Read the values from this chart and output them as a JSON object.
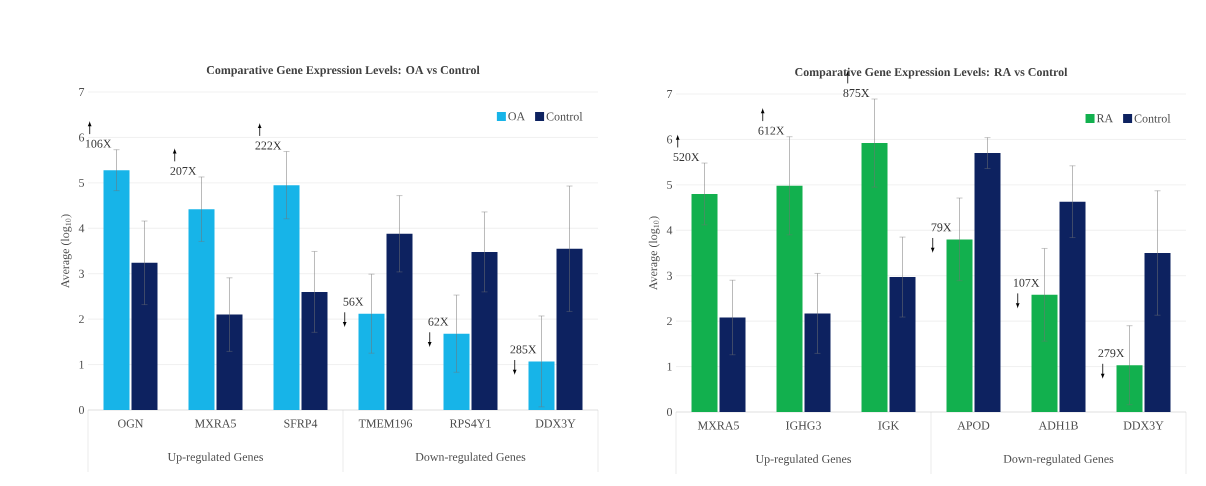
{
  "chart_data": [
    {
      "type": "bar",
      "title": "Comparative Gene Expression Levels: OA vs Control",
      "ylabel": "Average (log$_{10}$)",
      "categories": [
        "OGN",
        "MXRA5",
        "SFRP4",
        "TMEM196",
        "RPS4Y1",
        "DDX3Y"
      ],
      "series": [
        {
          "name": "OA",
          "color": "#17b4e8",
          "values": [
            5.28,
            4.42,
            4.95,
            2.12,
            1.68,
            1.07
          ],
          "errors": [
            0.45,
            0.71,
            0.74,
            0.87,
            0.85,
            1.0
          ]
        },
        {
          "name": "Control",
          "color": "#0d2260",
          "values": [
            3.24,
            2.1,
            2.6,
            3.88,
            3.48,
            3.55
          ],
          "errors": [
            0.92,
            0.81,
            0.89,
            0.84,
            0.88,
            1.38
          ]
        }
      ],
      "ylim": [
        0,
        7
      ],
      "yticks": [
        0,
        1,
        2,
        3,
        4,
        5,
        6,
        7
      ],
      "grid": "y",
      "legend": "top right",
      "annotations": [
        "Up-regulated Genes",
        "Down-regulated Genes",
        "106X",
        "207X",
        "222X",
        "56X",
        "62X",
        "285X"
      ]
    },
    {
      "type": "bar",
      "title": "Comparative Gene Expression Levels: RA vs Control",
      "ylabel": "Average (log$_{10}$)",
      "categories": [
        "MXRA5",
        "IGHG3",
        "IGK",
        "APOD",
        "ADH1B",
        "DDX3Y"
      ],
      "series": [
        {
          "name": "RA",
          "color": "#12b04e",
          "values": [
            4.8,
            4.98,
            5.92,
            3.8,
            2.58,
            1.03
          ],
          "errors": [
            0.68,
            1.08,
            0.97,
            0.91,
            1.02,
            0.87
          ]
        },
        {
          "name": "Control",
          "color": "#0d2260",
          "values": [
            2.08,
            2.17,
            2.97,
            5.7,
            4.63,
            3.5
          ],
          "errors": [
            0.82,
            0.88,
            0.88,
            0.34,
            0.79,
            1.37
          ]
        }
      ],
      "ylim": [
        0,
        7
      ],
      "yticks": [
        0,
        1,
        2,
        3,
        4,
        5,
        6,
        7
      ],
      "grid": "y",
      "legend": "top right",
      "annotations": [
        "Up-regulated Genes",
        "Down-regulated Genes",
        "520X",
        "612X",
        "875X",
        "79X",
        "107X",
        "279X"
      ]
    }
  ]
}
